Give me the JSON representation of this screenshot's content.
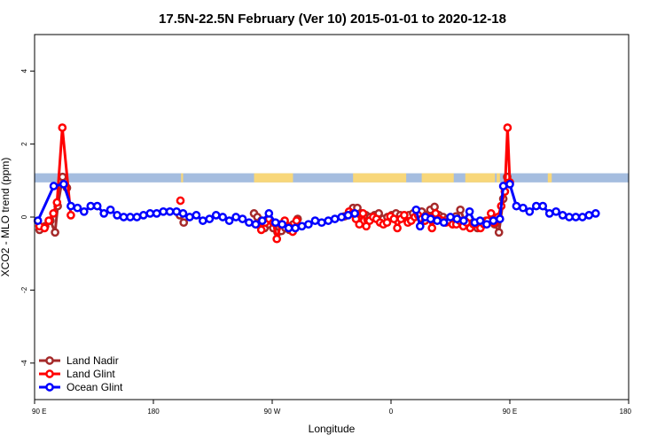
{
  "chart_data": {
    "type": "line",
    "title": "17.5N-22.5N February (Ver 10)   2015-01-01 to 2020-12-18",
    "xlabel": "Longitude",
    "ylabel": "XCO2 - MLO trend (ppm)",
    "x_axis": {
      "range": [
        90,
        270
      ],
      "ticks": [
        {
          "value": 90,
          "label": "90 E"
        },
        {
          "value": 126,
          "label": "180"
        },
        {
          "value": 162,
          "label": "90 W"
        },
        {
          "value": 198,
          "label": "0"
        },
        {
          "value": 234,
          "label": "90 E"
        },
        {
          "value": 270,
          "label": "180"
        }
      ]
    },
    "y_axis": {
      "range": [
        -5,
        5
      ],
      "ticks": [
        {
          "value": -4,
          "label": "-4"
        },
        {
          "value": -2,
          "label": "-2"
        },
        {
          "value": 0,
          "label": "0"
        },
        {
          "value": 2,
          "label": "2"
        },
        {
          "value": 4,
          "label": "4"
        }
      ]
    },
    "grid": false,
    "legend_position": "bottom-left",
    "land_mask_band": {
      "y_range": [
        0.95,
        1.2
      ],
      "ocean_color": "#a5bddf",
      "land_color": "#f8d77a",
      "land_segments": [
        [
          97.5,
          98.2
        ],
        [
          134.4,
          135.0
        ],
        [
          156.5,
          168.3
        ],
        [
          186.5,
          202.6
        ],
        [
          207.3,
          217.0
        ],
        [
          220.5,
          229.5
        ],
        [
          230.0,
          231.0
        ],
        [
          245.5,
          246.7
        ]
      ]
    },
    "series": [
      {
        "name": "Land Nadir",
        "color": "#a52a2a",
        "segments": [
          [
            [
              91.5,
              -0.35
            ],
            [
              93.2,
              -0.25
            ],
            [
              94.8,
              -0.1
            ],
            [
              96.2,
              -0.42
            ],
            [
              97.0,
              0.3
            ],
            [
              98.5,
              1.1
            ],
            [
              99.8,
              0.8
            ]
          ],
          [
            [
              134.0,
              0.05
            ],
            [
              135.2,
              -0.15
            ]
          ],
          [
            [
              156.5,
              0.1
            ],
            [
              157.5,
              0.0
            ],
            [
              158.7,
              -0.1
            ],
            [
              159.7,
              -0.3
            ],
            [
              161.0,
              -0.2
            ],
            [
              162.3,
              -0.3
            ],
            [
              163.6,
              -0.42
            ],
            [
              164.8,
              -0.38
            ],
            [
              166.0,
              -0.3
            ],
            [
              167.2,
              -0.35
            ],
            [
              168.4,
              -0.2
            ],
            [
              169.7,
              -0.05
            ]
          ],
          [
            [
              183.9,
              0.02
            ],
            [
              185.2,
              0.1
            ],
            [
              186.5,
              0.25
            ],
            [
              187.8,
              0.25
            ],
            [
              189.1,
              0.1
            ],
            [
              190.4,
              0.05
            ],
            [
              191.7,
              0.0
            ],
            [
              193.0,
              0.05
            ],
            [
              194.3,
              0.1
            ],
            [
              195.6,
              -0.05
            ],
            [
              196.9,
              0.0
            ],
            [
              198.2,
              0.05
            ],
            [
              199.5,
              0.1
            ],
            [
              200.8,
              0.05
            ],
            [
              202.1,
              0.0
            ],
            [
              203.4,
              0.05
            ],
            [
              204.7,
              0.1
            ],
            [
              206.0,
              0.05
            ],
            [
              207.3,
              0.15
            ],
            [
              208.6,
              0.05
            ],
            [
              209.9,
              0.2
            ],
            [
              211.2,
              0.28
            ],
            [
              212.5,
              0.05
            ],
            [
              213.8,
              0.0
            ],
            [
              215.1,
              -0.05
            ],
            [
              216.4,
              -0.1
            ],
            [
              217.7,
              0.02
            ],
            [
              219.0,
              0.2
            ],
            [
              220.3,
              -0.1
            ],
            [
              221.6,
              -0.2
            ],
            [
              222.9,
              -0.15
            ],
            [
              224.2,
              -0.3
            ],
            [
              225.5,
              -0.2
            ],
            [
              226.8,
              -0.1
            ],
            [
              228.1,
              -0.1
            ],
            [
              229.4,
              -0.2
            ],
            [
              230.7,
              -0.42
            ],
            [
              232.0,
              0.5
            ],
            [
              233.2,
              1.1
            ]
          ]
        ]
      },
      {
        "name": "Land Glint",
        "color": "#ff0000",
        "segments": [
          [
            [
              91.5,
              -0.25
            ],
            [
              93.0,
              -0.3
            ],
            [
              94.3,
              -0.1
            ],
            [
              95.7,
              0.1
            ],
            [
              96.8,
              0.4
            ],
            [
              98.4,
              2.45
            ],
            [
              101.0,
              0.05
            ]
          ],
          [
            [
              134.2,
              0.45
            ]
          ],
          [
            [
              157.5,
              -0.2
            ],
            [
              158.7,
              -0.35
            ],
            [
              159.9,
              -0.15
            ],
            [
              161.1,
              -0.05
            ],
            [
              162.3,
              -0.15
            ],
            [
              163.4,
              -0.6
            ],
            [
              164.6,
              -0.2
            ],
            [
              165.8,
              -0.1
            ],
            [
              167.0,
              -0.25
            ],
            [
              168.2,
              -0.4
            ],
            [
              169.4,
              -0.1
            ]
          ],
          [
            [
              185.3,
              0.15
            ],
            [
              186.3,
              0.1
            ],
            [
              187.4,
              -0.05
            ],
            [
              188.4,
              -0.2
            ],
            [
              189.5,
              0.1
            ],
            [
              190.5,
              -0.25
            ],
            [
              191.5,
              -0.1
            ],
            [
              192.6,
              0.0
            ],
            [
              193.6,
              -0.05
            ],
            [
              194.7,
              -0.15
            ],
            [
              195.7,
              -0.2
            ],
            [
              196.8,
              -0.15
            ],
            [
              197.8,
              0.02
            ],
            [
              198.9,
              -0.05
            ],
            [
              199.9,
              -0.3
            ],
            [
              201.0,
              -0.05
            ],
            [
              202.0,
              0.05
            ],
            [
              203.1,
              -0.15
            ],
            [
              204.1,
              -0.1
            ],
            [
              205.2,
              0.0
            ],
            [
              206.2,
              0.05
            ],
            [
              207.3,
              -0.05
            ],
            [
              208.3,
              -0.1
            ],
            [
              209.4,
              0.0
            ],
            [
              210.4,
              -0.3
            ],
            [
              211.5,
              0.1
            ],
            [
              212.5,
              -0.05
            ],
            [
              213.6,
              -0.1
            ],
            [
              214.6,
              -0.15
            ],
            [
              215.7,
              -0.1
            ],
            [
              216.7,
              -0.2
            ],
            [
              217.8,
              -0.2
            ],
            [
              218.8,
              -0.1
            ],
            [
              219.9,
              -0.25
            ],
            [
              220.9,
              -0.15
            ],
            [
              222.0,
              -0.3
            ],
            [
              223.0,
              -0.2
            ],
            [
              224.1,
              -0.2
            ],
            [
              225.1,
              -0.3
            ],
            [
              226.2,
              -0.2
            ],
            [
              227.2,
              -0.1
            ],
            [
              228.3,
              0.1
            ],
            [
              229.3,
              -0.15
            ],
            [
              230.4,
              0.0
            ],
            [
              231.4,
              0.3
            ],
            [
              232.5,
              0.7
            ],
            [
              233.3,
              2.45
            ],
            [
              234.0,
              0.95
            ]
          ]
        ]
      },
      {
        "name": "Ocean Glint",
        "color": "#0000ff",
        "segments": [
          [
            [
              91.0,
              -0.1
            ],
            [
              95.8,
              0.85
            ],
            [
              98.8,
              0.9
            ],
            [
              101.0,
              0.3
            ],
            [
              103.0,
              0.25
            ],
            [
              105.0,
              0.15
            ],
            [
              107.0,
              0.3
            ],
            [
              109.0,
              0.3
            ],
            [
              111.0,
              0.1
            ],
            [
              113.0,
              0.2
            ],
            [
              115.0,
              0.05
            ],
            [
              117.0,
              0.0
            ],
            [
              119.0,
              0.0
            ],
            [
              121.0,
              0.0
            ],
            [
              123.0,
              0.05
            ],
            [
              125.0,
              0.1
            ],
            [
              127.0,
              0.1
            ],
            [
              129.0,
              0.15
            ],
            [
              131.0,
              0.15
            ],
            [
              133.0,
              0.15
            ],
            [
              135.0,
              0.1
            ],
            [
              137.0,
              0.0
            ],
            [
              139.0,
              0.05
            ],
            [
              141.0,
              -0.1
            ],
            [
              143.0,
              -0.05
            ],
            [
              145.0,
              0.05
            ],
            [
              147.0,
              0.0
            ],
            [
              149.0,
              -0.1
            ],
            [
              151.0,
              0.0
            ],
            [
              153.0,
              -0.05
            ],
            [
              155.0,
              -0.15
            ],
            [
              157.0,
              -0.2
            ],
            [
              159.0,
              -0.1
            ],
            [
              161.0,
              0.1
            ],
            [
              163.0,
              -0.15
            ],
            [
              165.0,
              -0.2
            ],
            [
              167.0,
              -0.3
            ],
            [
              169.0,
              -0.3
            ],
            [
              171.0,
              -0.25
            ],
            [
              173.0,
              -0.2
            ],
            [
              175.0,
              -0.1
            ],
            [
              177.0,
              -0.15
            ],
            [
              179.0,
              -0.1
            ],
            [
              181.0,
              -0.05
            ],
            [
              183.0,
              0.0
            ],
            [
              185.0,
              0.05
            ],
            [
              187.0,
              0.1
            ]
          ],
          [
            [
              205.6,
              0.2
            ],
            [
              206.8,
              -0.25
            ],
            [
              208.4,
              0.0
            ],
            [
              210.0,
              -0.05
            ],
            [
              212.0,
              -0.1
            ],
            [
              214.0,
              -0.15
            ],
            [
              216.0,
              0.0
            ],
            [
              218.0,
              -0.05
            ],
            [
              220.0,
              -0.1
            ],
            [
              221.8,
              0.15
            ],
            [
              223.4,
              -0.15
            ],
            [
              225.0,
              -0.1
            ],
            [
              227.0,
              -0.2
            ],
            [
              229.0,
              -0.1
            ],
            [
              231.0,
              -0.05
            ],
            [
              232.0,
              0.85
            ],
            [
              234.0,
              0.9
            ],
            [
              236.0,
              0.3
            ],
            [
              238.0,
              0.25
            ],
            [
              240.0,
              0.15
            ],
            [
              242.0,
              0.3
            ],
            [
              244.0,
              0.3
            ],
            [
              246.0,
              0.1
            ],
            [
              248.0,
              0.15
            ],
            [
              250.0,
              0.05
            ],
            [
              252.0,
              0.0
            ],
            [
              254.0,
              0.0
            ],
            [
              256.0,
              0.0
            ],
            [
              258.0,
              0.05
            ],
            [
              260.0,
              0.1
            ]
          ]
        ]
      }
    ]
  }
}
